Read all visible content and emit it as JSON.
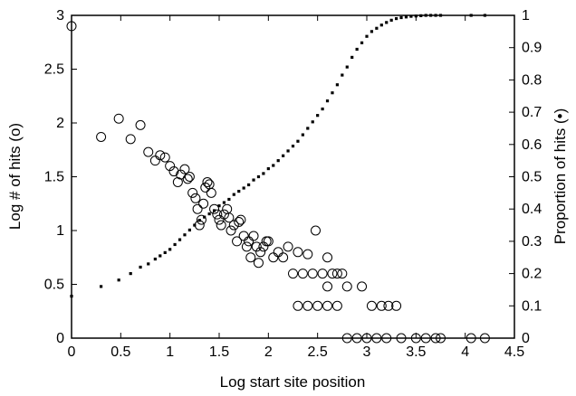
{
  "chart_data": {
    "type": "scatter",
    "title": "",
    "xlabel": "Log start site position",
    "ylabel_left": "Log # of hits (o)",
    "ylabel_right": "Proportion of hits (•)",
    "xlim": [
      0,
      4.5
    ],
    "ylim_left": [
      0,
      3
    ],
    "ylim_right": [
      0,
      1
    ],
    "xticks": [
      "0",
      "0.5",
      "1",
      "1.5",
      "2",
      "2.5",
      "3",
      "3.5",
      "4",
      "4.5"
    ],
    "yticks_left": [
      "0",
      "0.5",
      "1",
      "1.5",
      "2",
      "2.5",
      "3"
    ],
    "yticks_right": [
      "0",
      "0.1",
      "0.2",
      "0.3",
      "0.4",
      "0.5",
      "0.6",
      "0.7",
      "0.8",
      "0.9",
      "1"
    ],
    "grid": false,
    "legend": "none",
    "series": [
      {
        "name": "Log # of hits (o)",
        "axis": "left",
        "marker": "open-circle",
        "x": [
          0.0,
          0.3,
          0.48,
          0.6,
          0.7,
          0.78,
          0.85,
          0.9,
          0.95,
          1.0,
          1.04,
          1.08,
          1.11,
          1.15,
          1.18,
          1.2,
          1.23,
          1.26,
          1.28,
          1.3,
          1.32,
          1.34,
          1.36,
          1.38,
          1.4,
          1.42,
          1.45,
          1.48,
          1.5,
          1.52,
          1.55,
          1.58,
          1.6,
          1.62,
          1.65,
          1.68,
          1.7,
          1.72,
          1.75,
          1.78,
          1.8,
          1.82,
          1.85,
          1.88,
          1.9,
          1.92,
          1.95,
          1.98,
          2.0,
          2.05,
          2.1,
          2.15,
          2.2,
          2.3,
          2.4,
          2.48,
          2.6,
          2.7,
          2.25,
          2.35,
          2.45,
          2.55,
          2.65,
          2.75,
          2.6,
          2.8,
          2.95,
          3.05,
          3.15,
          3.22,
          3.3,
          2.3,
          2.4,
          2.5,
          2.6,
          2.7,
          2.8,
          2.9,
          3.0,
          3.1,
          3.2,
          3.35,
          3.5,
          3.6,
          3.7,
          3.75,
          4.06,
          4.2
        ],
        "y": [
          2.9,
          1.87,
          2.04,
          1.85,
          1.98,
          1.73,
          1.65,
          1.7,
          1.68,
          1.6,
          1.55,
          1.45,
          1.52,
          1.57,
          1.48,
          1.5,
          1.35,
          1.3,
          1.2,
          1.05,
          1.1,
          1.25,
          1.4,
          1.45,
          1.43,
          1.35,
          1.2,
          1.15,
          1.1,
          1.05,
          1.15,
          1.2,
          1.12,
          1.0,
          1.05,
          0.9,
          1.08,
          1.1,
          0.95,
          0.85,
          0.9,
          0.75,
          0.95,
          0.85,
          0.7,
          0.8,
          0.85,
          0.9,
          0.9,
          0.75,
          0.8,
          0.75,
          0.85,
          0.8,
          0.78,
          1.0,
          0.75,
          0.6,
          0.6,
          0.6,
          0.6,
          0.6,
          0.6,
          0.6,
          0.48,
          0.48,
          0.48,
          0.3,
          0.3,
          0.3,
          0.3,
          0.3,
          0.3,
          0.3,
          0.3,
          0.3,
          0.0,
          0.0,
          0.0,
          0.0,
          0.0,
          0.0,
          0.0,
          0.0,
          0.0,
          0.0,
          0.0,
          0.0
        ]
      },
      {
        "name": "Proportion of hits (•)",
        "axis": "right",
        "marker": "filled-square",
        "x": [
          0.0,
          0.3,
          0.48,
          0.6,
          0.7,
          0.78,
          0.85,
          0.9,
          0.95,
          1.0,
          1.05,
          1.1,
          1.15,
          1.2,
          1.25,
          1.3,
          1.35,
          1.4,
          1.45,
          1.5,
          1.55,
          1.6,
          1.65,
          1.7,
          1.75,
          1.8,
          1.85,
          1.9,
          1.95,
          2.0,
          2.05,
          2.1,
          2.15,
          2.2,
          2.25,
          2.3,
          2.35,
          2.4,
          2.45,
          2.5,
          2.55,
          2.6,
          2.65,
          2.7,
          2.75,
          2.8,
          2.85,
          2.9,
          2.95,
          3.0,
          3.05,
          3.1,
          3.15,
          3.2,
          3.25,
          3.3,
          3.35,
          3.4,
          3.45,
          3.5,
          3.55,
          3.6,
          3.65,
          3.7,
          3.75,
          4.06,
          4.2
        ],
        "y": [
          0.13,
          0.16,
          0.18,
          0.2,
          0.22,
          0.23,
          0.245,
          0.255,
          0.265,
          0.275,
          0.29,
          0.305,
          0.32,
          0.335,
          0.35,
          0.365,
          0.375,
          0.385,
          0.395,
          0.41,
          0.42,
          0.43,
          0.445,
          0.455,
          0.465,
          0.475,
          0.49,
          0.5,
          0.51,
          0.525,
          0.535,
          0.55,
          0.565,
          0.58,
          0.595,
          0.61,
          0.63,
          0.65,
          0.67,
          0.69,
          0.71,
          0.735,
          0.76,
          0.785,
          0.815,
          0.84,
          0.87,
          0.895,
          0.915,
          0.935,
          0.95,
          0.96,
          0.97,
          0.978,
          0.985,
          0.99,
          0.993,
          0.995,
          0.997,
          0.998,
          0.999,
          1.0,
          1.0,
          1.0,
          1.0,
          1.0,
          1.0
        ]
      }
    ]
  }
}
